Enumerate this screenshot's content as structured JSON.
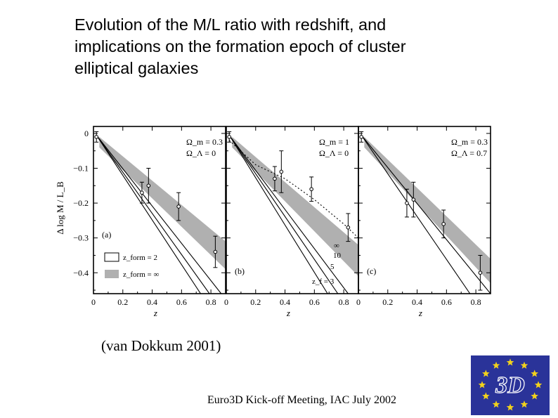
{
  "title_lines": [
    "Evolution of the M/L ratio with redshift, and",
    "implications on the formation epoch of cluster",
    "elliptical galaxies"
  ],
  "citation": "(van Dokkum 2001)",
  "footer": "Euro3D Kick-off Meeting, IAC July 2002",
  "logo": {
    "text": "3D",
    "bg_color": "#2a3399",
    "star_color": "#f2d21c"
  },
  "colors": {
    "band": "#b0b0b0",
    "ink": "#000000"
  },
  "chart_data": {
    "type": "scatter",
    "ylabel": "Δ log M / L_B",
    "xlabel": "z",
    "xlim": [
      0,
      0.9
    ],
    "ylim": [
      -0.46,
      0.02
    ],
    "xticks": [
      0,
      0.2,
      0.4,
      0.6,
      0.8
    ],
    "xtick_labels": [
      "0",
      "0.2",
      "0.4",
      "0.6",
      "0.8"
    ],
    "yticks": [
      0,
      -0.1,
      -0.2,
      -0.3,
      -0.4
    ],
    "ytick_labels": [
      "0",
      "−0.1",
      "−0.2",
      "−0.3",
      "−0.4"
    ],
    "legend": [
      {
        "label": "z_form = 2",
        "style": "open box"
      },
      {
        "label": "z_form = ∞",
        "style": "grey band"
      }
    ],
    "panels": [
      {
        "tag": "(a)",
        "params": [
          "Ω_m = 0.3",
          "Ω_Λ = 0"
        ],
        "points": [
          {
            "x": 0.02,
            "y": -0.01,
            "err": 0.015
          },
          {
            "x": 0.33,
            "y": -0.17,
            "err": 0.03
          },
          {
            "x": 0.375,
            "y": -0.15,
            "err": 0.05
          },
          {
            "x": 0.58,
            "y": -0.21,
            "err": 0.04
          },
          {
            "x": 0.83,
            "y": -0.34,
            "err": 0.045
          }
        ],
        "band": {
          "x": [
            0.04,
            0.9
          ],
          "upper": [
            -0.01,
            -0.31
          ],
          "lower": [
            -0.04,
            -0.39
          ]
        },
        "lines": [
          [
            [
              0.02,
              -0.005
            ],
            [
              0.79,
              -0.46
            ]
          ],
          [
            [
              0.02,
              -0.005
            ],
            [
              0.87,
              -0.46
            ]
          ],
          [
            [
              0.02,
              -0.005
            ],
            [
              0.73,
              -0.46
            ]
          ]
        ],
        "annotations": []
      },
      {
        "tag": "(b)",
        "params": [
          "Ω_m = 1",
          "Ω_Λ = 0"
        ],
        "points": [
          {
            "x": 0.02,
            "y": -0.01,
            "err": 0.015
          },
          {
            "x": 0.33,
            "y": -0.13,
            "err": 0.035
          },
          {
            "x": 0.375,
            "y": -0.11,
            "err": 0.06
          },
          {
            "x": 0.58,
            "y": -0.16,
            "err": 0.035
          },
          {
            "x": 0.83,
            "y": -0.27,
            "err": 0.04
          }
        ],
        "band": {
          "x": [
            0.04,
            0.9
          ],
          "upper": [
            -0.01,
            -0.32
          ],
          "lower": [
            -0.04,
            -0.41
          ]
        },
        "lines": [
          [
            [
              0.02,
              -0.005
            ],
            [
              0.69,
              -0.46
            ]
          ],
          [
            [
              0.02,
              -0.005
            ],
            [
              0.76,
              -0.46
            ]
          ],
          [
            [
              0.02,
              -0.005
            ],
            [
              0.83,
              -0.46
            ]
          ]
        ],
        "curve": [
          [
            0.02,
            -0.02
          ],
          [
            0.2,
            -0.09
          ],
          [
            0.4,
            -0.13
          ],
          [
            0.6,
            -0.19
          ],
          [
            0.8,
            -0.26
          ],
          [
            0.9,
            -0.3
          ]
        ],
        "annotations": [
          "z_f = 3",
          "5",
          "10",
          "∞"
        ]
      },
      {
        "tag": "(c)",
        "params": [
          "Ω_m = 0.3",
          "Ω_Λ = 0.7"
        ],
        "points": [
          {
            "x": 0.02,
            "y": -0.01,
            "err": 0.015
          },
          {
            "x": 0.33,
            "y": -0.2,
            "err": 0.04
          },
          {
            "x": 0.375,
            "y": -0.19,
            "err": 0.05
          },
          {
            "x": 0.58,
            "y": -0.26,
            "err": 0.04
          },
          {
            "x": 0.83,
            "y": -0.4,
            "err": 0.05
          }
        ],
        "band": {
          "x": [
            0.04,
            0.9
          ],
          "upper": [
            -0.01,
            -0.36
          ],
          "lower": [
            -0.04,
            -0.43
          ]
        },
        "lines": [
          [
            [
              0.02,
              -0.005
            ],
            [
              0.76,
              -0.46
            ]
          ],
          [
            [
              0.02,
              -0.005
            ],
            [
              0.9,
              -0.46
            ]
          ]
        ],
        "annotations": []
      }
    ]
  }
}
